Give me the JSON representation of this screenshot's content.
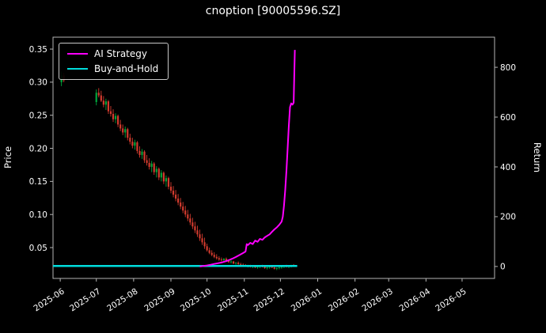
{
  "title": "cnoption [90005596.SZ]",
  "legend": {
    "entries": [
      "AI Strategy",
      "Buy-and-Hold"
    ]
  },
  "chart_data": {
    "type": "candlestick",
    "title": "cnoption [90005596.SZ]",
    "xlabel": "",
    "ylabel_left": "Price",
    "ylabel_right": "Return",
    "background": "#000000",
    "text_color": "#ffffff",
    "grid": false,
    "legend_position": "upper left",
    "x_unit": "days since 2025-06-01",
    "x_domain": [
      -6,
      361
    ],
    "x_ticks": [
      {
        "t": 0,
        "label": "2025-06"
      },
      {
        "t": 30,
        "label": "2025-07"
      },
      {
        "t": 61,
        "label": "2025-08"
      },
      {
        "t": 92,
        "label": "2025-09"
      },
      {
        "t": 122,
        "label": "2025-10"
      },
      {
        "t": 153,
        "label": "2025-11"
      },
      {
        "t": 183,
        "label": "2025-12"
      },
      {
        "t": 214,
        "label": "2026-01"
      },
      {
        "t": 245,
        "label": "2026-02"
      },
      {
        "t": 273,
        "label": "2026-03"
      },
      {
        "t": 304,
        "label": "2026-04"
      },
      {
        "t": 334,
        "label": "2026-05"
      }
    ],
    "price_axis": {
      "range": [
        0.0034,
        0.368
      ],
      "ticks": [
        0.05,
        0.1,
        0.15,
        0.2,
        0.25,
        0.3,
        0.35
      ]
    },
    "return_axis": {
      "range": [
        -48,
        921
      ],
      "ticks": [
        0,
        200,
        400,
        600,
        800
      ]
    },
    "candle_colors": {
      "up": "#00a53c",
      "down": "#d23b2e"
    },
    "candles": [
      [
        1,
        0.3,
        0.316,
        0.294,
        0.31
      ],
      [
        3,
        0.31,
        0.314,
        0.3,
        0.303
      ],
      [
        30,
        0.27,
        0.289,
        0.265,
        0.284
      ],
      [
        32,
        0.284,
        0.291,
        0.277,
        0.28
      ],
      [
        34,
        0.28,
        0.287,
        0.27,
        0.272
      ],
      [
        36,
        0.272,
        0.279,
        0.262,
        0.266
      ],
      [
        38,
        0.266,
        0.275,
        0.258,
        0.271
      ],
      [
        40,
        0.271,
        0.273,
        0.252,
        0.256
      ],
      [
        42,
        0.256,
        0.264,
        0.248,
        0.252
      ],
      [
        44,
        0.252,
        0.259,
        0.24,
        0.244
      ],
      [
        46,
        0.244,
        0.253,
        0.238,
        0.249
      ],
      [
        48,
        0.249,
        0.251,
        0.232,
        0.236
      ],
      [
        50,
        0.236,
        0.243,
        0.226,
        0.23
      ],
      [
        52,
        0.23,
        0.236,
        0.22,
        0.224
      ],
      [
        54,
        0.224,
        0.233,
        0.216,
        0.229
      ],
      [
        56,
        0.229,
        0.231,
        0.212,
        0.216
      ],
      [
        58,
        0.216,
        0.222,
        0.206,
        0.21
      ],
      [
        60,
        0.21,
        0.216,
        0.2,
        0.204
      ],
      [
        62,
        0.204,
        0.213,
        0.198,
        0.209
      ],
      [
        64,
        0.209,
        0.211,
        0.192,
        0.196
      ],
      [
        66,
        0.196,
        0.203,
        0.186,
        0.19
      ],
      [
        68,
        0.19,
        0.199,
        0.184,
        0.195
      ],
      [
        70,
        0.195,
        0.197,
        0.178,
        0.182
      ],
      [
        72,
        0.182,
        0.19,
        0.174,
        0.178
      ],
      [
        74,
        0.178,
        0.185,
        0.168,
        0.172
      ],
      [
        76,
        0.172,
        0.181,
        0.164,
        0.177
      ],
      [
        78,
        0.177,
        0.179,
        0.16,
        0.164
      ],
      [
        80,
        0.164,
        0.173,
        0.156,
        0.169
      ],
      [
        82,
        0.169,
        0.171,
        0.152,
        0.156
      ],
      [
        84,
        0.156,
        0.167,
        0.15,
        0.163
      ],
      [
        86,
        0.163,
        0.165,
        0.146,
        0.15
      ],
      [
        88,
        0.15,
        0.159,
        0.142,
        0.155
      ],
      [
        90,
        0.155,
        0.157,
        0.138,
        0.142
      ],
      [
        92,
        0.142,
        0.149,
        0.132,
        0.136
      ],
      [
        94,
        0.136,
        0.143,
        0.126,
        0.13
      ],
      [
        96,
        0.13,
        0.137,
        0.12,
        0.124
      ],
      [
        98,
        0.124,
        0.131,
        0.114,
        0.118
      ],
      [
        100,
        0.118,
        0.125,
        0.108,
        0.112
      ],
      [
        102,
        0.112,
        0.119,
        0.102,
        0.106
      ],
      [
        104,
        0.106,
        0.113,
        0.096,
        0.1
      ],
      [
        106,
        0.1,
        0.107,
        0.09,
        0.094
      ],
      [
        108,
        0.094,
        0.101,
        0.084,
        0.088
      ],
      [
        110,
        0.088,
        0.095,
        0.078,
        0.082
      ],
      [
        112,
        0.082,
        0.089,
        0.072,
        0.076
      ],
      [
        114,
        0.076,
        0.083,
        0.066,
        0.07
      ],
      [
        116,
        0.07,
        0.077,
        0.06,
        0.064
      ],
      [
        118,
        0.064,
        0.071,
        0.054,
        0.058
      ],
      [
        120,
        0.058,
        0.065,
        0.048,
        0.052
      ],
      [
        122,
        0.052,
        0.056,
        0.044,
        0.046
      ],
      [
        124,
        0.046,
        0.05,
        0.04,
        0.042
      ],
      [
        126,
        0.042,
        0.046,
        0.037,
        0.039
      ],
      [
        128,
        0.039,
        0.043,
        0.034,
        0.036
      ],
      [
        130,
        0.036,
        0.04,
        0.032,
        0.034
      ],
      [
        132,
        0.034,
        0.037,
        0.03,
        0.032
      ],
      [
        134,
        0.032,
        0.035,
        0.029,
        0.031
      ],
      [
        136,
        0.031,
        0.034,
        0.028,
        0.033
      ],
      [
        138,
        0.033,
        0.035,
        0.029,
        0.03
      ],
      [
        140,
        0.03,
        0.032,
        0.027,
        0.028
      ],
      [
        142,
        0.028,
        0.031,
        0.026,
        0.029
      ],
      [
        144,
        0.029,
        0.03,
        0.025,
        0.026
      ],
      [
        146,
        0.026,
        0.028,
        0.024,
        0.027
      ],
      [
        148,
        0.027,
        0.029,
        0.024,
        0.025
      ],
      [
        150,
        0.025,
        0.027,
        0.023,
        0.024
      ],
      [
        152,
        0.024,
        0.026,
        0.022,
        0.023
      ],
      [
        154,
        0.023,
        0.025,
        0.021,
        0.022
      ],
      [
        156,
        0.022,
        0.024,
        0.02,
        0.023
      ],
      [
        158,
        0.023,
        0.024,
        0.02,
        0.021
      ],
      [
        160,
        0.021,
        0.023,
        0.019,
        0.022
      ],
      [
        162,
        0.022,
        0.023,
        0.019,
        0.02
      ],
      [
        164,
        0.02,
        0.022,
        0.018,
        0.021
      ],
      [
        166,
        0.021,
        0.023,
        0.019,
        0.022
      ],
      [
        168,
        0.022,
        0.024,
        0.02,
        0.021
      ],
      [
        170,
        0.021,
        0.022,
        0.018,
        0.019
      ],
      [
        172,
        0.019,
        0.021,
        0.017,
        0.02
      ],
      [
        174,
        0.02,
        0.022,
        0.018,
        0.021
      ],
      [
        176,
        0.021,
        0.023,
        0.019,
        0.02
      ],
      [
        178,
        0.02,
        0.021,
        0.017,
        0.018
      ],
      [
        180,
        0.018,
        0.02,
        0.016,
        0.019
      ],
      [
        182,
        0.019,
        0.021,
        0.017,
        0.02
      ],
      [
        184,
        0.02,
        0.022,
        0.018,
        0.021
      ],
      [
        186,
        0.021,
        0.023,
        0.019,
        0.022
      ],
      [
        188,
        0.022,
        0.024,
        0.02,
        0.021
      ],
      [
        190,
        0.021,
        0.023,
        0.019,
        0.022
      ],
      [
        192,
        0.022,
        0.024,
        0.02,
        0.023
      ],
      [
        194,
        0.023,
        0.025,
        0.021,
        0.022
      ]
    ],
    "series": [
      {
        "name": "AI Strategy",
        "axis": "return",
        "color": "#ff00ff",
        "width": 2,
        "points": [
          [
            116,
            0
          ],
          [
            119,
            2
          ],
          [
            122,
            4
          ],
          [
            125,
            7
          ],
          [
            128,
            10
          ],
          [
            131,
            13
          ],
          [
            134,
            16
          ],
          [
            137,
            20
          ],
          [
            140,
            25
          ],
          [
            143,
            31
          ],
          [
            146,
            38
          ],
          [
            149,
            46
          ],
          [
            152,
            54
          ],
          [
            154,
            60
          ],
          [
            155,
            90
          ],
          [
            156,
            86
          ],
          [
            158,
            95
          ],
          [
            160,
            90
          ],
          [
            162,
            104
          ],
          [
            164,
            99
          ],
          [
            166,
            111
          ],
          [
            168,
            107
          ],
          [
            170,
            117
          ],
          [
            172,
            123
          ],
          [
            174,
            129
          ],
          [
            176,
            139
          ],
          [
            178,
            149
          ],
          [
            180,
            157
          ],
          [
            182,
            167
          ],
          [
            184,
            180
          ],
          [
            185,
            200
          ],
          [
            186,
            245
          ],
          [
            187,
            305
          ],
          [
            188,
            385
          ],
          [
            189,
            475
          ],
          [
            190,
            565
          ],
          [
            191,
            640
          ],
          [
            192,
            655
          ],
          [
            193,
            650
          ],
          [
            194,
            658
          ],
          [
            195,
            870
          ]
        ]
      },
      {
        "name": "Buy-and-Hold",
        "axis": "return",
        "color": "#00dcdc",
        "width": 2.5,
        "points": [
          [
            -6,
            2
          ],
          [
            197,
            2
          ]
        ]
      }
    ]
  }
}
